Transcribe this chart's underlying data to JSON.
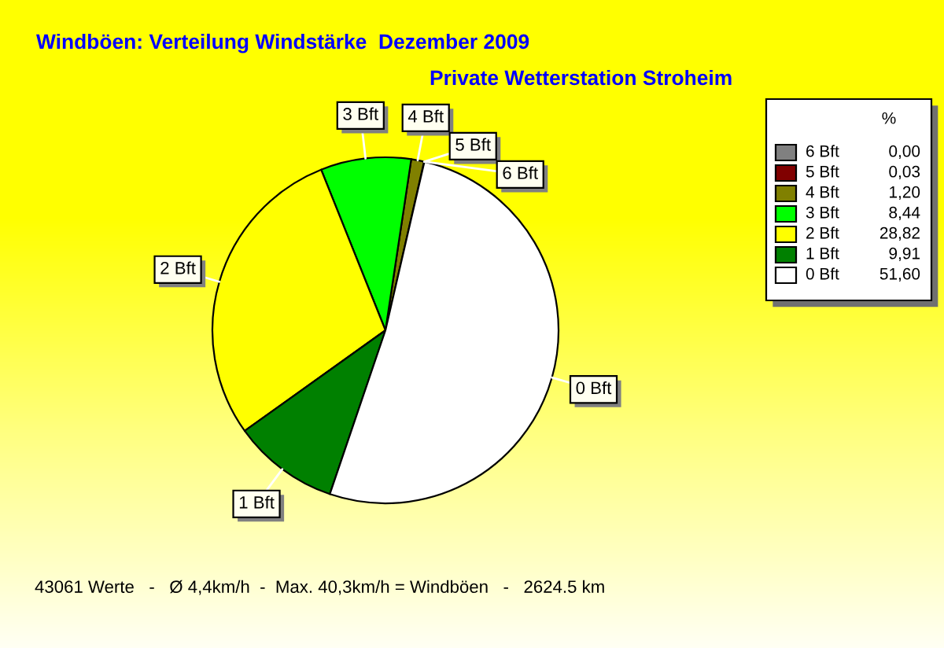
{
  "chart_data": {
    "type": "pie",
    "title": "Windböen: Verteilung Windstärke  Dezember 2009",
    "subtitle": "Private Wetterstation Stroheim",
    "legend_title": "%",
    "categories": [
      "6 Bft",
      "5 Bft",
      "4 Bft",
      "3 Bft",
      "2 Bft",
      "1 Bft",
      "0 Bft"
    ],
    "values": [
      0,
      0.03,
      1.2,
      8.44,
      28.82,
      9.91,
      51.6
    ],
    "value_labels": [
      "0,00",
      "0,03",
      "1,20",
      "8,44",
      "28,82",
      "9,91",
      "51,60"
    ],
    "colors": [
      "#808080",
      "#800000",
      "#808000",
      "#00ff00",
      "#ffff00",
      "#008000",
      "#ffffff"
    ],
    "legend": "top right",
    "annotations": [
      "43061 Werte   -   Ø 4,4km/h  -  Max. 40,3km/h = Windböen   -   2624.5 km"
    ]
  }
}
